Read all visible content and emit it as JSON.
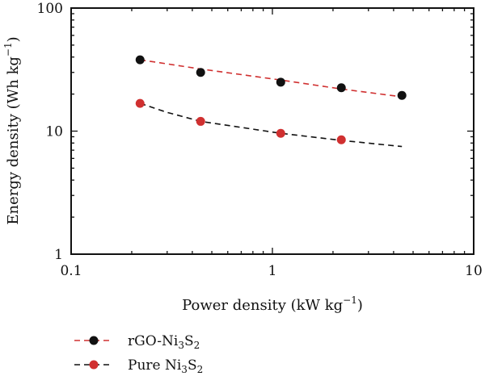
{
  "chart_data": {
    "type": "scatter",
    "x_scale": "log",
    "y_scale": "log",
    "xlim": [
      0.1,
      10
    ],
    "ylim": [
      1,
      100
    ],
    "x_ticks": [
      "0.1",
      "1",
      "10"
    ],
    "y_ticks": [
      "1",
      "10",
      "100"
    ],
    "xlabel": {
      "main": "Power density (kW kg",
      "sup": "−1",
      "close": ")"
    },
    "ylabel": {
      "main": "Energy density (Wh kg",
      "sup": "−1",
      "close": ")"
    },
    "grid": false,
    "legend_position": "bottom-left, below plot",
    "series": [
      {
        "name": "rGO-Ni3S2",
        "legend_parts": [
          "rGO-Ni",
          "3",
          "S",
          "2"
        ],
        "marker_color": "#111111",
        "line_color": "#d03030",
        "line_style": "dashed",
        "points": [
          {
            "x": 0.22,
            "y": 38
          },
          {
            "x": 0.44,
            "y": 30
          },
          {
            "x": 1.1,
            "y": 25
          },
          {
            "x": 2.2,
            "y": 22.5
          },
          {
            "x": 4.4,
            "y": 19.5
          }
        ],
        "fit": [
          {
            "x": 0.22,
            "y": 38
          },
          {
            "x": 0.44,
            "y": 32
          },
          {
            "x": 1.1,
            "y": 26
          },
          {
            "x": 2.2,
            "y": 22
          },
          {
            "x": 4.4,
            "y": 19
          }
        ]
      },
      {
        "name": "Pure Ni3S2",
        "legend_parts": [
          "Pure Ni",
          "3",
          "S",
          "2"
        ],
        "marker_color": "#d03030",
        "line_color": "#111111",
        "line_style": "dashed",
        "points": [
          {
            "x": 0.22,
            "y": 16.8
          },
          {
            "x": 0.44,
            "y": 12
          },
          {
            "x": 1.1,
            "y": 9.6
          },
          {
            "x": 2.2,
            "y": 8.5
          }
        ],
        "fit": [
          {
            "x": 0.22,
            "y": 16.8
          },
          {
            "x": 0.3,
            "y": 14.2
          },
          {
            "x": 0.44,
            "y": 12.0
          },
          {
            "x": 1.1,
            "y": 9.6
          },
          {
            "x": 2.2,
            "y": 8.4
          },
          {
            "x": 4.4,
            "y": 7.5
          }
        ]
      }
    ]
  }
}
